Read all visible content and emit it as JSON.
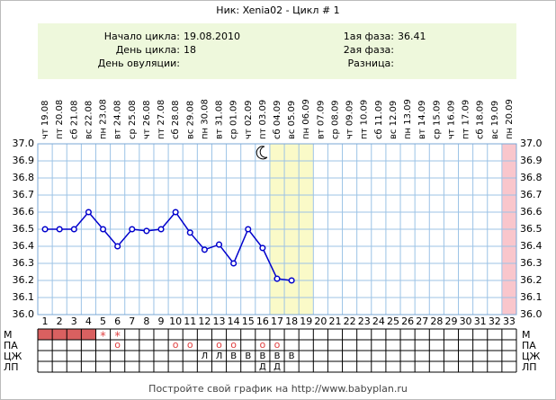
{
  "title": "Ник: Xenia02 - Цикл # 1",
  "info": {
    "left": [
      {
        "label": "Начало цикла:",
        "value": "19.08.2010"
      },
      {
        "label": "День цикла:",
        "value": "18"
      },
      {
        "label": "День овуляции:"
      }
    ],
    "right": [
      {
        "label": "1ая фаза:",
        "value": "36.41"
      },
      {
        "label": "2ая фаза:"
      },
      {
        "label": "Разница:"
      }
    ]
  },
  "chart_data": {
    "type": "line",
    "weekdays": [
      "чт",
      "пт",
      "сб",
      "вс",
      "пн",
      "вт",
      "ср",
      "чт",
      "пт",
      "сб",
      "вс",
      "пн",
      "вт",
      "ср",
      "чт",
      "пт",
      "сб",
      "вс",
      "пн",
      "вт",
      "ср",
      "чт",
      "пт",
      "сб",
      "вс",
      "пн",
      "вт",
      "ср",
      "чт",
      "пт",
      "сб",
      "вс",
      "пн"
    ],
    "dates": [
      "19.08",
      "20.08",
      "21.08",
      "22.08",
      "23.08",
      "24.08",
      "25.08",
      "26.08",
      "27.08",
      "28.08",
      "29.08",
      "30.08",
      "31.08",
      "01.09",
      "02.09",
      "03.09",
      "04.09",
      "05.09",
      "06.09",
      "07.09",
      "08.09",
      "09.09",
      "10.09",
      "11.09",
      "12.09",
      "13.09",
      "14.09",
      "15.09",
      "16.09",
      "17.09",
      "18.09",
      "19.09",
      "20.09"
    ],
    "days": [
      1,
      2,
      3,
      4,
      5,
      6,
      7,
      8,
      9,
      10,
      11,
      12,
      13,
      14,
      15,
      16,
      17,
      18,
      19,
      20,
      21,
      22,
      23,
      24,
      25,
      26,
      27,
      28,
      29,
      30,
      31,
      32,
      33
    ],
    "series": [
      {
        "color": "#0000cc",
        "values": [
          36.5,
          36.5,
          36.5,
          36.6,
          36.5,
          36.4,
          36.5,
          36.49,
          36.5,
          36.6,
          36.48,
          36.38,
          36.41,
          36.3,
          36.5,
          36.39,
          36.21,
          36.2,
          null,
          null,
          null,
          null,
          null,
          null,
          null,
          null,
          null,
          null,
          null,
          null,
          null,
          null,
          null
        ]
      }
    ],
    "ylim": [
      36.0,
      37.0
    ],
    "yticks": [
      {
        "value": 36.0,
        "label": "36.0"
      },
      36.1,
      36.2,
      36.3,
      36.4,
      36.5,
      36.6,
      36.7,
      36.8,
      36.9,
      {
        "value": 37.0,
        "label": "37.0"
      }
    ],
    "grid": true,
    "highlight": {
      "days": [
        17,
        18,
        19
      ],
      "color": "#fafac8"
    },
    "end_day": {
      "day": 33,
      "color": "#f9c6cc"
    },
    "moon_day": 16
  },
  "rows": [
    {
      "label": "М",
      "filled": [
        1,
        2,
        3,
        4
      ],
      "color": "#d96060",
      "marks": [
        {
          "day": 5,
          "text": "*"
        },
        {
          "day": 6,
          "text": "*"
        }
      ]
    },
    {
      "label": "ПА",
      "marks": [
        {
          "day": 6,
          "text": "о"
        },
        {
          "day": 10,
          "text": "о"
        },
        {
          "day": 11,
          "text": "о"
        },
        {
          "day": 13,
          "text": "о"
        },
        {
          "day": 14,
          "text": "о"
        },
        {
          "day": 16,
          "text": "о"
        },
        {
          "day": 17,
          "text": "о"
        }
      ]
    },
    {
      "label": "ЦЖ",
      "marks": [
        {
          "day": 12,
          "text": "Л"
        },
        {
          "day": 13,
          "text": "Л"
        },
        {
          "day": 14,
          "text": "В"
        },
        {
          "day": 15,
          "text": "В"
        },
        {
          "day": 16,
          "text": "В"
        },
        {
          "day": 17,
          "text": "В"
        },
        {
          "day": 18,
          "text": "В"
        }
      ]
    },
    {
      "label": "ЛП",
      "marks": [
        {
          "day": 16,
          "text": "Д"
        },
        {
          "day": 17,
          "text": "Д"
        }
      ]
    }
  ],
  "footer": "Постройте свой график на http://www.babyplan.ru"
}
